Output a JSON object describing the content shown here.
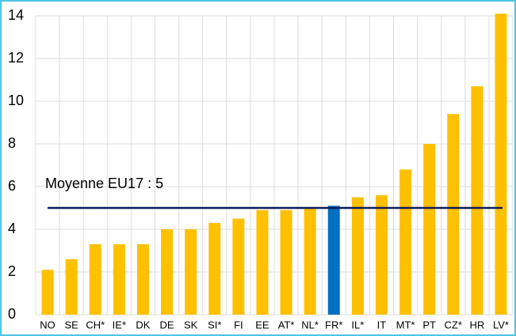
{
  "chart_data": {
    "type": "bar",
    "categories": [
      "NO",
      "SE",
      "CH*",
      "IE*",
      "DK",
      "DE",
      "SK",
      "SI*",
      "FI",
      "EE",
      "AT*",
      "NL*",
      "FR*",
      "IL*",
      "IT",
      "MT*",
      "PT",
      "CZ*",
      "HR",
      "LV*"
    ],
    "values": [
      2.1,
      2.6,
      3.3,
      3.3,
      3.3,
      4.0,
      4.0,
      4.3,
      4.5,
      4.9,
      4.9,
      5.0,
      5.1,
      5.5,
      5.6,
      6.8,
      8.0,
      9.4,
      10.7,
      14.1
    ],
    "colors": [
      "#ffc000",
      "#ffc000",
      "#ffc000",
      "#ffc000",
      "#ffc000",
      "#ffc000",
      "#ffc000",
      "#ffc000",
      "#ffc000",
      "#ffc000",
      "#ffc000",
      "#ffc000",
      "#0070c0",
      "#ffc000",
      "#ffc000",
      "#ffc000",
      "#ffc000",
      "#ffc000",
      "#ffc000",
      "#ffc000"
    ],
    "ylim": [
      0,
      14
    ],
    "yticks": [
      0,
      2,
      4,
      6,
      8,
      10,
      12,
      14
    ],
    "grid": true,
    "reference_line": {
      "value": 5,
      "label": "Moyenne EU17 : 5",
      "color": "#0d1a5c"
    }
  }
}
